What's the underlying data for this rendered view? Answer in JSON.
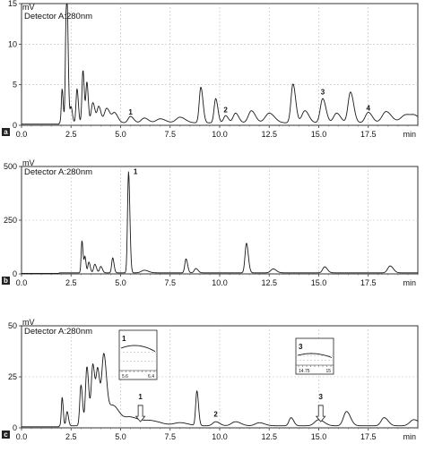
{
  "chart_data": [
    {
      "type": "line",
      "panel": "a",
      "detector_label": "Detector A:280nm",
      "ylabel": "mV",
      "xlabel": "min",
      "xlim": [
        0,
        20
      ],
      "ylim": [
        0,
        15
      ],
      "xticks": [
        "0.0",
        "2.5",
        "5.0",
        "7.5",
        "10.0",
        "12.5",
        "15.0",
        "17.5"
      ],
      "yticks": [
        "0",
        "5",
        "10",
        "15"
      ],
      "grid": true,
      "baseline": 0.3,
      "peaks": [
        {
          "x": 2.05,
          "h": 4.2,
          "w": 0.04
        },
        {
          "x": 2.25,
          "h": 12.2,
          "w": 0.04
        },
        {
          "x": 2.32,
          "h": 9.0,
          "w": 0.04
        },
        {
          "x": 2.5,
          "h": 2.0,
          "w": 0.05
        },
        {
          "x": 2.8,
          "h": 4.2,
          "w": 0.05
        },
        {
          "x": 3.1,
          "h": 6.5,
          "w": 0.05
        },
        {
          "x": 3.3,
          "h": 5.0,
          "w": 0.05
        },
        {
          "x": 3.6,
          "h": 2.5,
          "w": 0.08
        },
        {
          "x": 3.9,
          "h": 2.0,
          "w": 0.08
        },
        {
          "x": 4.3,
          "h": 1.8,
          "w": 0.12
        },
        {
          "x": 4.7,
          "h": 1.2,
          "w": 0.12
        },
        {
          "x": 5.5,
          "h": 0.8,
          "w": 0.12
        },
        {
          "x": 6.2,
          "h": 0.6,
          "w": 0.15
        },
        {
          "x": 7.0,
          "h": 0.5,
          "w": 0.2
        },
        {
          "x": 8.0,
          "h": 0.7,
          "w": 0.2
        },
        {
          "x": 9.05,
          "h": 4.4,
          "w": 0.08
        },
        {
          "x": 9.8,
          "h": 3.0,
          "w": 0.08
        },
        {
          "x": 10.3,
          "h": 0.9,
          "w": 0.1
        },
        {
          "x": 10.8,
          "h": 1.2,
          "w": 0.12
        },
        {
          "x": 11.6,
          "h": 1.5,
          "w": 0.15
        },
        {
          "x": 12.5,
          "h": 1.2,
          "w": 0.2
        },
        {
          "x": 13.7,
          "h": 4.8,
          "w": 0.1
        },
        {
          "x": 14.3,
          "h": 1.5,
          "w": 0.15
        },
        {
          "x": 15.2,
          "h": 3.0,
          "w": 0.12
        },
        {
          "x": 15.9,
          "h": 1.2,
          "w": 0.15
        },
        {
          "x": 16.6,
          "h": 3.8,
          "w": 0.12
        },
        {
          "x": 17.5,
          "h": 1.3,
          "w": 0.15
        },
        {
          "x": 18.4,
          "h": 1.4,
          "w": 0.2
        },
        {
          "x": 19.4,
          "h": 1.0,
          "w": 0.25
        },
        {
          "x": 19.9,
          "h": 0.6,
          "w": 0.2
        }
      ],
      "annotations": [
        {
          "text": "1",
          "x": 5.5,
          "y": 1.3
        },
        {
          "text": "2",
          "x": 10.3,
          "y": 1.6
        },
        {
          "text": "3",
          "x": 15.2,
          "y": 3.8
        },
        {
          "text": "4",
          "x": 17.5,
          "y": 1.8
        }
      ]
    },
    {
      "type": "line",
      "panel": "b",
      "detector_label": "Detector A:280nm",
      "ylabel": "mV",
      "xlabel": "min",
      "xlim": [
        0,
        20
      ],
      "ylim": [
        0,
        500
      ],
      "xticks": [
        "0.0",
        "2.5",
        "5.0",
        "7.5",
        "10.0",
        "12.5",
        "15.0",
        "17.5"
      ],
      "yticks": [
        "0",
        "250",
        "500"
      ],
      "grid": true,
      "baseline": 5,
      "peaks": [
        {
          "x": 3.05,
          "h": 150,
          "w": 0.04
        },
        {
          "x": 3.2,
          "h": 75,
          "w": 0.04
        },
        {
          "x": 3.4,
          "h": 50,
          "w": 0.05
        },
        {
          "x": 3.7,
          "h": 40,
          "w": 0.06
        },
        {
          "x": 4.0,
          "h": 30,
          "w": 0.06
        },
        {
          "x": 4.6,
          "h": 70,
          "w": 0.05
        },
        {
          "x": 5.4,
          "h": 470,
          "w": 0.05
        },
        {
          "x": 6.2,
          "h": 12,
          "w": 0.15
        },
        {
          "x": 8.3,
          "h": 65,
          "w": 0.06
        },
        {
          "x": 8.8,
          "h": 20,
          "w": 0.08
        },
        {
          "x": 11.35,
          "h": 138,
          "w": 0.07
        },
        {
          "x": 12.7,
          "h": 18,
          "w": 0.12
        },
        {
          "x": 15.3,
          "h": 28,
          "w": 0.1
        },
        {
          "x": 18.6,
          "h": 32,
          "w": 0.12
        }
      ],
      "annotations": [
        {
          "text": "1",
          "x": 5.75,
          "y": 465
        }
      ]
    },
    {
      "type": "line",
      "panel": "c",
      "detector_label": "Detector A:280nm",
      "ylabel": "mV",
      "xlabel": "min",
      "xlim": [
        0,
        20
      ],
      "ylim": [
        0,
        50
      ],
      "xticks": [
        "0.0",
        "2.5",
        "5.0",
        "7.5",
        "10.0",
        "12.5",
        "15.0",
        "17.5"
      ],
      "yticks": [
        "0",
        "25",
        "50"
      ],
      "grid": true,
      "baseline": 1,
      "peaks": [
        {
          "x": 2.05,
          "h": 14,
          "w": 0.04
        },
        {
          "x": 2.3,
          "h": 7,
          "w": 0.05
        },
        {
          "x": 3.0,
          "h": 20,
          "w": 0.06
        },
        {
          "x": 3.3,
          "h": 29,
          "w": 0.07
        },
        {
          "x": 3.6,
          "h": 30,
          "w": 0.08
        },
        {
          "x": 3.85,
          "h": 26,
          "w": 0.08
        },
        {
          "x": 4.15,
          "h": 33,
          "w": 0.1
        },
        {
          "x": 4.6,
          "h": 10,
          "w": 0.25
        },
        {
          "x": 5.5,
          "h": 4,
          "w": 0.3
        },
        {
          "x": 6.5,
          "h": 2.5,
          "w": 0.4
        },
        {
          "x": 8.0,
          "h": 1.5,
          "w": 0.3
        },
        {
          "x": 8.85,
          "h": 17,
          "w": 0.06
        },
        {
          "x": 9.8,
          "h": 2,
          "w": 0.15
        },
        {
          "x": 10.8,
          "h": 2,
          "w": 0.2
        },
        {
          "x": 12.0,
          "h": 1.5,
          "w": 0.2
        },
        {
          "x": 13.6,
          "h": 4,
          "w": 0.1
        },
        {
          "x": 15.0,
          "h": 3,
          "w": 0.2
        },
        {
          "x": 16.4,
          "h": 7,
          "w": 0.15
        },
        {
          "x": 18.3,
          "h": 4,
          "w": 0.15
        },
        {
          "x": 19.8,
          "h": 3,
          "w": 0.2
        }
      ],
      "annotations": [
        {
          "text": "1",
          "x": 6.0,
          "y": 14
        },
        {
          "text": "2",
          "x": 9.8,
          "y": 5.5
        },
        {
          "text": "3",
          "x": 15.1,
          "y": 14
        }
      ],
      "insets": [
        {
          "label": "1",
          "tick_labels": [
            "5.6",
            "6.4"
          ],
          "arrow_x": 6.0
        },
        {
          "label": "3",
          "tick_labels": [
            "14.75",
            "15"
          ],
          "arrow_x": 15.1
        }
      ]
    }
  ]
}
